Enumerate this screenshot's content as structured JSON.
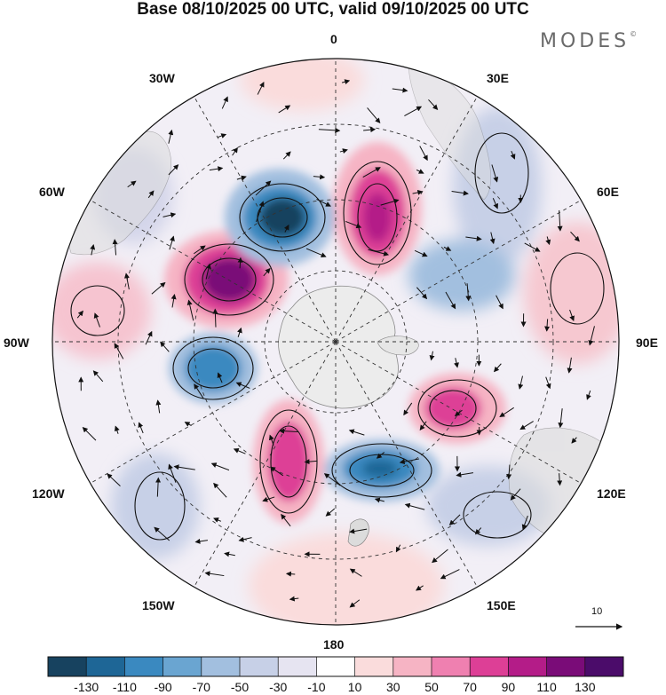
{
  "title": "Base 08/10/2025 00 UTC, valid 09/10/2025 00 UTC",
  "logo": {
    "text": "MODES",
    "mark": "©"
  },
  "longitude_labels": {
    "lon_0": "0",
    "lon_30e": "30E",
    "lon_60e": "60E",
    "lon_90e": "90E",
    "lon_120e": "120E",
    "lon_150e": "150E",
    "lon_180": "180",
    "lon_150w": "150W",
    "lon_120w": "120W",
    "lon_90w": "90W",
    "lon_60w": "60W",
    "lon_30w": "30W"
  },
  "colorbar": {
    "ticks": [
      "-130",
      "-110",
      "-90",
      "-70",
      "-50",
      "-30",
      "-10",
      "10",
      "30",
      "50",
      "70",
      "90",
      "110",
      "130"
    ],
    "colors": [
      "#17425f",
      "#1e6696",
      "#3a89c0",
      "#6aa5d1",
      "#a2bfdf",
      "#c7d0e7",
      "#e6e4f1",
      "#ffffff",
      "#fadcdc",
      "#f6b4c4",
      "#ef80b0",
      "#dd3f96",
      "#b41c88",
      "#7a0c78",
      "#4b0c6a"
    ]
  },
  "vector_reference": {
    "value": "10"
  },
  "map_legend": {
    "projection": "south-polar-stereographic",
    "field": "shaded anomaly with wind vectors"
  }
}
